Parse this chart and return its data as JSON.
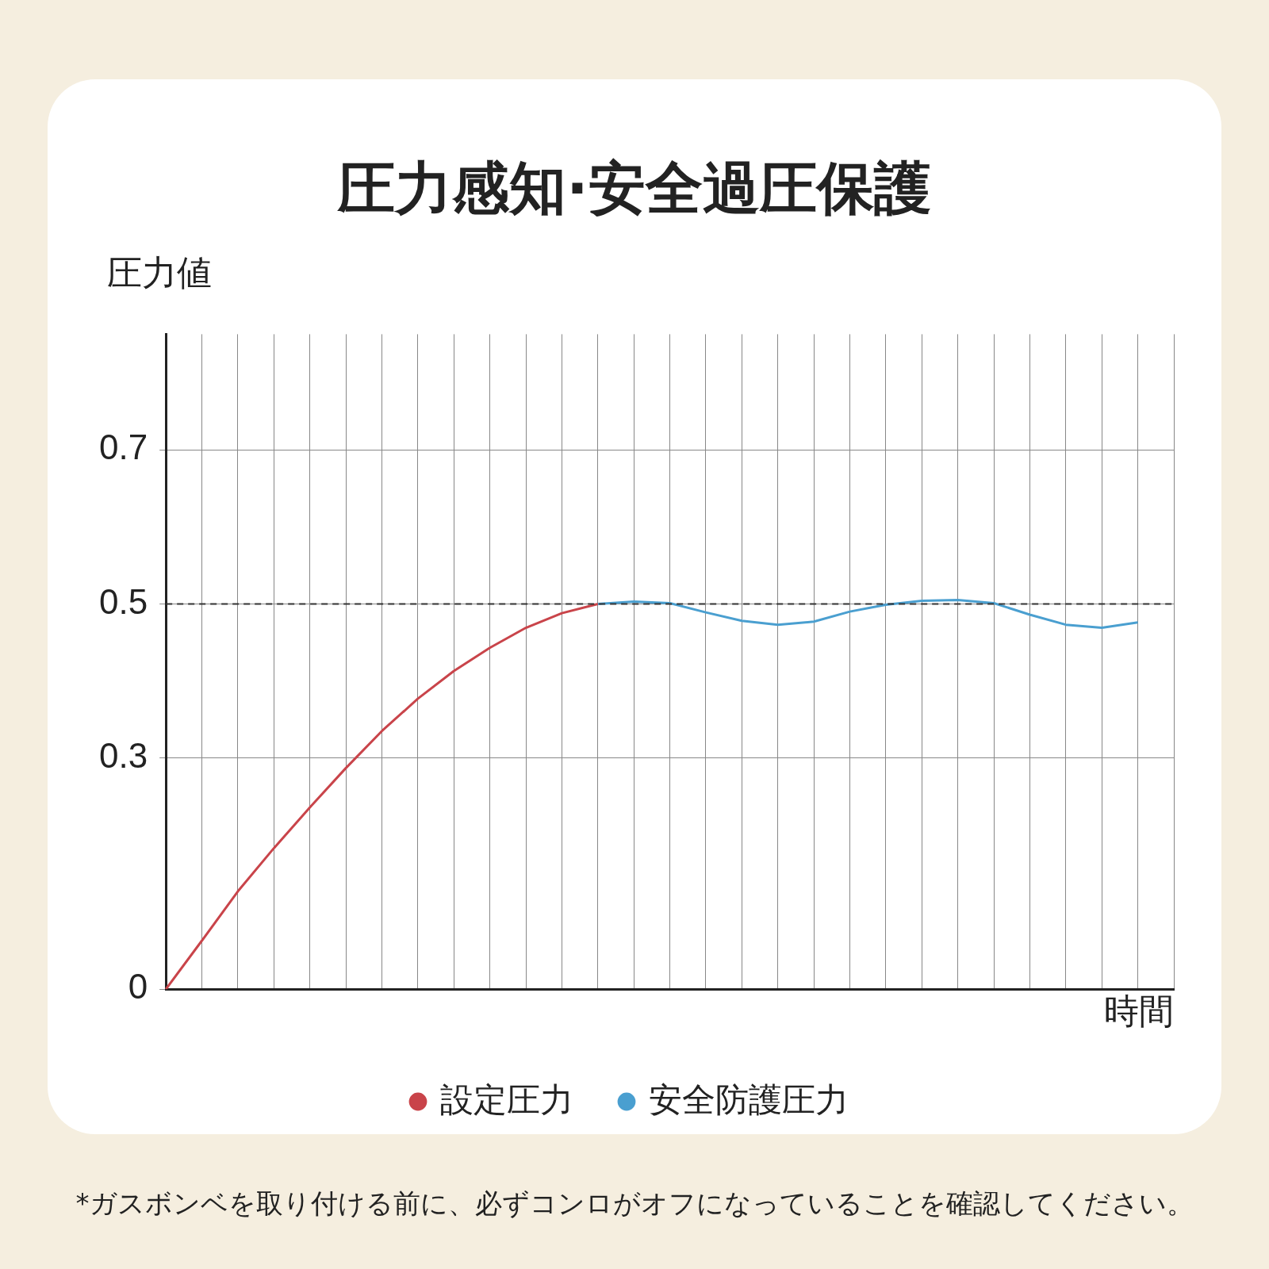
{
  "chart_data": {
    "type": "line",
    "title": "圧力感知·安全過圧保護",
    "xlabel": "時間",
    "ylabel": "圧力値",
    "categories": [
      null,
      null,
      null,
      null,
      null,
      null,
      null,
      null,
      null,
      null,
      null,
      null,
      null,
      null,
      null,
      null,
      null,
      null,
      null,
      null,
      null,
      null,
      null,
      null,
      null,
      null,
      null,
      null,
      null
    ],
    "series": [
      {
        "name": "設定圧力",
        "color": "#c9444a",
        "values": [
          0,
          0.063,
          0.127,
          0.183,
          0.236,
          0.287,
          0.335,
          0.377,
          0.413,
          0.443,
          0.469,
          0.488,
          0.5,
          null,
          null,
          null,
          null,
          null,
          null,
          null,
          null,
          null,
          null,
          null,
          null,
          null,
          null,
          null,
          null
        ]
      },
      {
        "name": "安全防護圧力",
        "color": "#4a9fd0",
        "values": [
          null,
          null,
          null,
          null,
          null,
          null,
          null,
          null,
          null,
          null,
          null,
          null,
          0.5,
          0.503,
          0.501,
          0.489,
          0.478,
          0.473,
          0.477,
          0.49,
          0.499,
          0.504,
          0.505,
          0.501,
          0.486,
          0.473,
          0.469,
          0.476,
          null
        ]
      }
    ],
    "ylim": [
      0,
      0.85
    ],
    "yticks": [
      0,
      0.3,
      0.5,
      0.7
    ],
    "grid": true,
    "legend": "bottom",
    "tick_labels": "y",
    "marker": "none",
    "line_style": "solid",
    "ref_lines": [
      {
        "axis": "y",
        "value": 0.5,
        "color": "#333333",
        "line_style": "dashed"
      }
    ],
    "annotations": [
      "*ガスボンベを取り付ける前に、必ずコンロがオフになっていることを確認してください。"
    ]
  }
}
